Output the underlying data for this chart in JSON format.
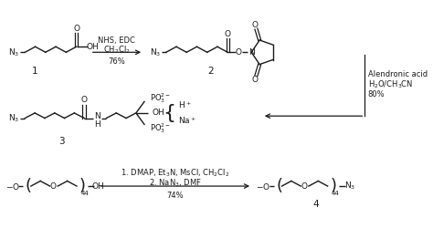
{
  "bg_color": "#ffffff",
  "line_color": "#1a1a1a",
  "fig_width": 4.74,
  "fig_height": 2.73,
  "dpi": 100,
  "fs": 6.5,
  "fsm": 7.5,
  "reaction1_top": "NHS, EDC",
  "reaction1_mid": "CH$_2$Cl$_2$",
  "reaction1_bot": "76%",
  "reaction2_top": "Alendronic acid",
  "reaction2_mid": "H$_2$O/CH$_3$CN",
  "reaction2_bot": "80%",
  "reaction3_top": "1. DMAP, Et$_3$N, MsCl, CH$_2$Cl$_2$",
  "reaction3_mid": "2. NaN$_3$, DMF",
  "reaction3_bot": "74%",
  "lbl1": "1",
  "lbl2": "2",
  "lbl3": "3",
  "lbl4": "4"
}
